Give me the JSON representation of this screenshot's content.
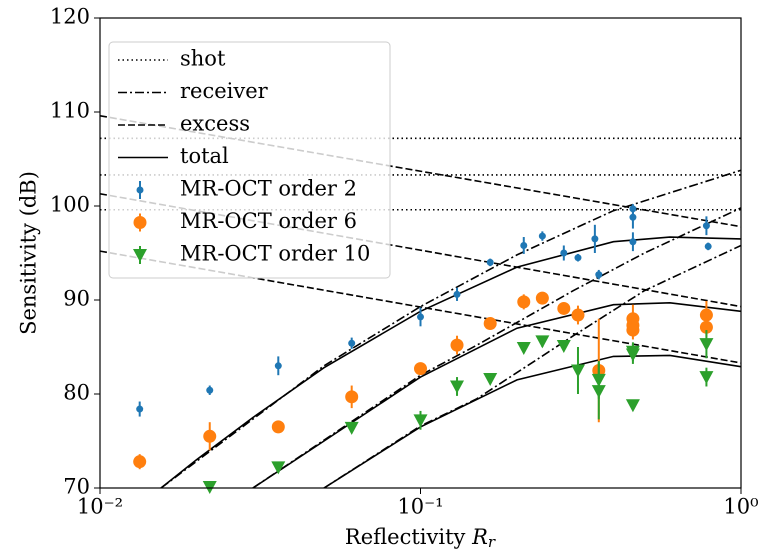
{
  "chart_data": {
    "type": "scatter",
    "xlabel": "Reflectivity",
    "xlabel_symbol": "R",
    "xlabel_subscript": "r",
    "ylabel": "Sensitivity (dB)",
    "xscale": "log",
    "xlim": [
      0.01,
      1
    ],
    "ylim": [
      70,
      120
    ],
    "xticks": [
      {
        "value": 0.01,
        "label": "10⁻²"
      },
      {
        "value": 0.1,
        "label": "10⁻¹"
      },
      {
        "value": 1,
        "label": "10⁰"
      }
    ],
    "yticks": [
      70,
      80,
      90,
      100,
      110,
      120
    ],
    "legend": "upper left",
    "model_lines": [
      {
        "name": "shot",
        "dash": "dotted",
        "curves": [
          {
            "x": [
              0.01,
              1
            ],
            "y": [
              107.2,
              107.2
            ]
          },
          {
            "x": [
              0.01,
              1
            ],
            "y": [
              103.3,
              103.3
            ]
          },
          {
            "x": [
              0.01,
              1
            ],
            "y": [
              99.6,
              99.6
            ]
          }
        ]
      },
      {
        "name": "receiver",
        "dash": "dashdot",
        "curves": [
          {
            "x": [
              0.0155,
              0.05,
              0.1,
              0.2,
              0.4,
              1
            ],
            "y": [
              70,
              83,
              89.3,
              94.8,
              99.5,
              103.8
            ]
          },
          {
            "x": [
              0.03,
              0.1,
              0.15,
              0.3,
              0.5,
              1
            ],
            "y": [
              70,
              82,
              85.2,
              91,
              95,
              99.8
            ]
          },
          {
            "x": [
              0.05,
              0.1,
              0.15,
              0.3,
              0.5,
              1
            ],
            "y": [
              70,
              76.6,
              79.5,
              86.2,
              91,
              95.8
            ]
          }
        ]
      },
      {
        "name": "excess",
        "dash": "dashed",
        "curves": [
          {
            "x": [
              0.01,
              1
            ],
            "y": [
              109.6,
              97.8
            ]
          },
          {
            "x": [
              0.01,
              1
            ],
            "y": [
              101.3,
              89.3
            ]
          },
          {
            "x": [
              0.01,
              1
            ],
            "y": [
              95.2,
              83.3
            ]
          }
        ]
      },
      {
        "name": "total",
        "dash": "solid",
        "curves": [
          {
            "x": [
              0.0155,
              0.02,
              0.03,
              0.05,
              0.1,
              0.2,
              0.4,
              0.6,
              1
            ],
            "y": [
              70,
              73,
              77.5,
              82.8,
              88.8,
              93.5,
              96.2,
              96.7,
              96.5
            ]
          },
          {
            "x": [
              0.03,
              0.05,
              0.1,
              0.2,
              0.4,
              0.6,
              1
            ],
            "y": [
              70,
              75,
              81.8,
              87,
              89.5,
              89.7,
              88.8
            ]
          },
          {
            "x": [
              0.05,
              0.1,
              0.2,
              0.4,
              0.6,
              1
            ],
            "y": [
              70,
              76.5,
              81.5,
              84,
              84.1,
              82.9
            ]
          }
        ]
      }
    ],
    "series": [
      {
        "name": "MR-OCT order 2",
        "color": "#1f77b4",
        "marker": "circle-small",
        "x": [
          0.0133,
          0.022,
          0.036,
          0.061,
          0.1,
          0.13,
          0.165,
          0.21,
          0.24,
          0.28,
          0.31,
          0.35,
          0.36,
          0.46,
          0.46,
          0.46,
          0.78,
          0.79
        ],
        "values": [
          78.4,
          80.4,
          83,
          85.4,
          88.2,
          90.6,
          94,
          95.8,
          96.8,
          95,
          94.5,
          96.5,
          92.7,
          98.8,
          96.2,
          99.7,
          97.9,
          95.7
        ],
        "errors": [
          0.8,
          0.5,
          1,
          0.6,
          1,
          0.7,
          0.4,
          0.9,
          0.5,
          0.8,
          0.4,
          1.5,
          0.5,
          1.2,
          1,
          0.5,
          1,
          0.4
        ]
      },
      {
        "name": "MR-OCT order 6",
        "color": "#ff7f0e",
        "marker": "circle",
        "x": [
          0.0133,
          0.022,
          0.036,
          0.061,
          0.1,
          0.13,
          0.165,
          0.21,
          0.24,
          0.28,
          0.31,
          0.36,
          0.46,
          0.46,
          0.46,
          0.78,
          0.78
        ],
        "values": [
          72.8,
          75.5,
          76.5,
          79.7,
          82.7,
          85.2,
          87.5,
          89.8,
          90.2,
          89.1,
          88.4,
          82.5,
          88,
          87.3,
          86.8,
          88.4,
          87.1
        ],
        "errors": [
          0.8,
          1.5,
          0.3,
          1.2,
          0.3,
          1,
          0.6,
          0.8,
          0.3,
          0.4,
          1,
          5.5,
          1.5,
          1,
          1,
          1.5,
          1
        ]
      },
      {
        "name": "MR-OCT order 10",
        "color": "#2ca02c",
        "marker": "triangle-down",
        "x": [
          0.022,
          0.036,
          0.061,
          0.1,
          0.13,
          0.165,
          0.21,
          0.24,
          0.28,
          0.31,
          0.36,
          0.36,
          0.46,
          0.46,
          0.46,
          0.78,
          0.78
        ],
        "values": [
          70.1,
          72.2,
          76.4,
          77.2,
          80.8,
          81.6,
          84.9,
          85.6,
          85.1,
          82.5,
          81.5,
          80.3,
          84.5,
          84.2,
          78.8,
          85.3,
          81.8
        ],
        "errors": [
          0.3,
          0.5,
          0.4,
          1,
          1,
          0.5,
          0.5,
          0.6,
          0.5,
          2.5,
          2,
          3,
          1,
          1,
          0.3,
          1.5,
          1
        ]
      }
    ]
  }
}
